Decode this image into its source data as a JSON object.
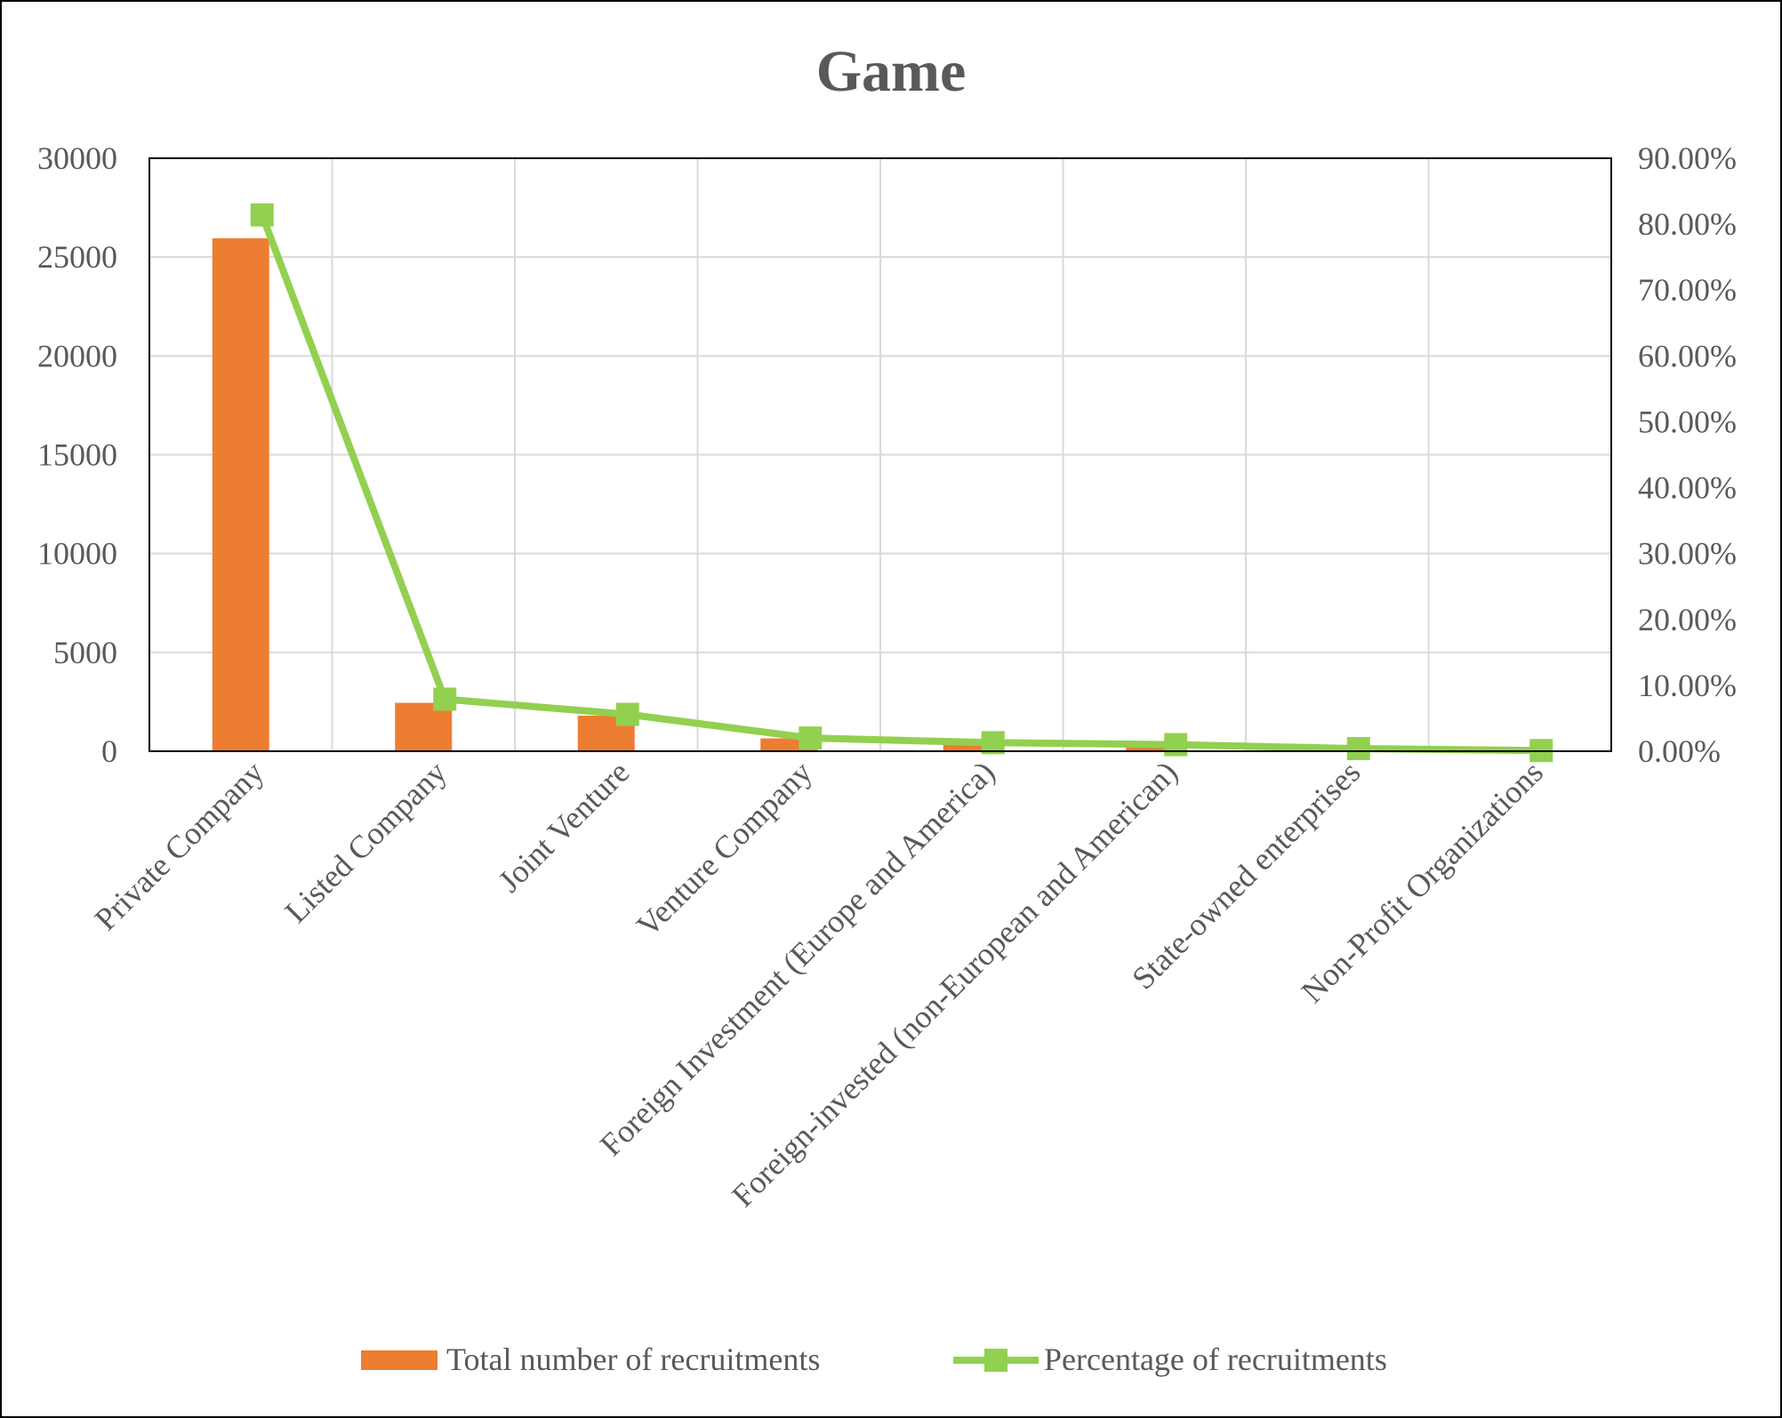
{
  "chart_data": {
    "type": "bar",
    "title": "Game",
    "categories": [
      "Private Company",
      "Listed Company",
      "Joint Venture",
      "Venture Company",
      "Foreign Investment (Europe and America)",
      "Foreign-invested (non-European and American)",
      "State-owned enterprises",
      "Non-Profit Organizations"
    ],
    "series": [
      {
        "name": "Total number of recruitments",
        "type": "bar",
        "axis": "left",
        "color": "#ED7D31",
        "values": [
          25950,
          2450,
          1800,
          650,
          420,
          320,
          110,
          20
        ]
      },
      {
        "name": "Percentage of recruitments",
        "type": "line",
        "axis": "right",
        "color": "#92D050",
        "values": [
          81.4,
          7.9,
          5.6,
          2.0,
          1.3,
          1.0,
          0.4,
          0.1
        ]
      }
    ],
    "y_left": {
      "range": [
        0,
        30000
      ],
      "ticks": [
        "0",
        "5000",
        "10000",
        "15000",
        "20000",
        "25000",
        "30000"
      ]
    },
    "y_right": {
      "range": [
        0,
        90
      ],
      "ticks": [
        "0.00%",
        "10.00%",
        "20.00%",
        "30.00%",
        "40.00%",
        "50.00%",
        "60.00%",
        "70.00%",
        "80.00%",
        "90.00%"
      ]
    },
    "grid": true,
    "legend_position": "bottom"
  }
}
